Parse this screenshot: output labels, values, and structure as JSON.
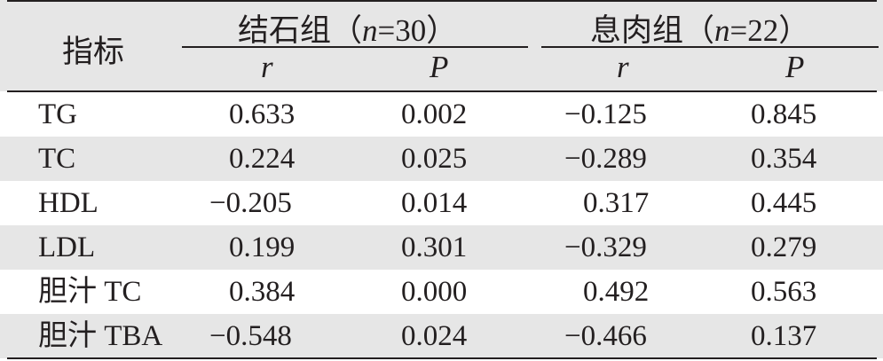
{
  "table": {
    "header": {
      "indicator_label": "指标",
      "group1_label": "结石组（n=30）",
      "group2_label": "息肉组（n=22）",
      "sub_r": "r",
      "sub_p": "P"
    },
    "rows": [
      {
        "name": "TG",
        "r1": "0.633",
        "p1": "0.002",
        "r2": "−0.125",
        "p2": "0.845"
      },
      {
        "name": "TC",
        "r1": "0.224",
        "p1": "0.025",
        "r2": "−0.289",
        "p2": "0.354"
      },
      {
        "name": "HDL",
        "r1": "−0.205",
        "p1": "0.014",
        "r2": "0.317",
        "p2": "0.445"
      },
      {
        "name": "LDL",
        "r1": "0.199",
        "p1": "0.301",
        "r2": "−0.329",
        "p2": "0.279"
      },
      {
        "name": "胆汁 TC",
        "r1": "0.384",
        "p1": "0.000",
        "r2": "0.492",
        "p2": "0.563"
      },
      {
        "name": "胆汁 TBA",
        "r1": "−0.548",
        "p1": "0.024",
        "r2": "−0.466",
        "p2": "0.137"
      }
    ]
  }
}
